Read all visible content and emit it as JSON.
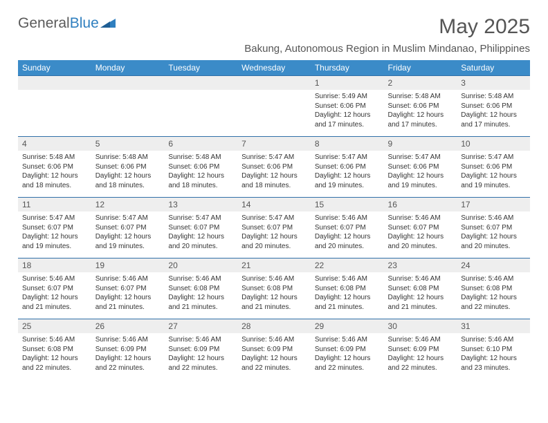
{
  "logo": {
    "text1": "General",
    "text2": "Blue"
  },
  "title": "May 2025",
  "subtitle": "Bakung, Autonomous Region in Muslim Mindanao, Philippines",
  "colors": {
    "header_bg": "#3b8bc8",
    "header_text": "#ffffff",
    "daynum_bg": "#eeeeee",
    "rule": "#2f6fa8",
    "text": "#333333",
    "title_text": "#555555"
  },
  "weekdays": [
    "Sunday",
    "Monday",
    "Tuesday",
    "Wednesday",
    "Thursday",
    "Friday",
    "Saturday"
  ],
  "weeks": [
    [
      {
        "n": "",
        "sr": "",
        "ss": "",
        "dl": ""
      },
      {
        "n": "",
        "sr": "",
        "ss": "",
        "dl": ""
      },
      {
        "n": "",
        "sr": "",
        "ss": "",
        "dl": ""
      },
      {
        "n": "",
        "sr": "",
        "ss": "",
        "dl": ""
      },
      {
        "n": "1",
        "sr": "Sunrise: 5:49 AM",
        "ss": "Sunset: 6:06 PM",
        "dl": "Daylight: 12 hours and 17 minutes."
      },
      {
        "n": "2",
        "sr": "Sunrise: 5:48 AM",
        "ss": "Sunset: 6:06 PM",
        "dl": "Daylight: 12 hours and 17 minutes."
      },
      {
        "n": "3",
        "sr": "Sunrise: 5:48 AM",
        "ss": "Sunset: 6:06 PM",
        "dl": "Daylight: 12 hours and 17 minutes."
      }
    ],
    [
      {
        "n": "4",
        "sr": "Sunrise: 5:48 AM",
        "ss": "Sunset: 6:06 PM",
        "dl": "Daylight: 12 hours and 18 minutes."
      },
      {
        "n": "5",
        "sr": "Sunrise: 5:48 AM",
        "ss": "Sunset: 6:06 PM",
        "dl": "Daylight: 12 hours and 18 minutes."
      },
      {
        "n": "6",
        "sr": "Sunrise: 5:48 AM",
        "ss": "Sunset: 6:06 PM",
        "dl": "Daylight: 12 hours and 18 minutes."
      },
      {
        "n": "7",
        "sr": "Sunrise: 5:47 AM",
        "ss": "Sunset: 6:06 PM",
        "dl": "Daylight: 12 hours and 18 minutes."
      },
      {
        "n": "8",
        "sr": "Sunrise: 5:47 AM",
        "ss": "Sunset: 6:06 PM",
        "dl": "Daylight: 12 hours and 19 minutes."
      },
      {
        "n": "9",
        "sr": "Sunrise: 5:47 AM",
        "ss": "Sunset: 6:06 PM",
        "dl": "Daylight: 12 hours and 19 minutes."
      },
      {
        "n": "10",
        "sr": "Sunrise: 5:47 AM",
        "ss": "Sunset: 6:06 PM",
        "dl": "Daylight: 12 hours and 19 minutes."
      }
    ],
    [
      {
        "n": "11",
        "sr": "Sunrise: 5:47 AM",
        "ss": "Sunset: 6:07 PM",
        "dl": "Daylight: 12 hours and 19 minutes."
      },
      {
        "n": "12",
        "sr": "Sunrise: 5:47 AM",
        "ss": "Sunset: 6:07 PM",
        "dl": "Daylight: 12 hours and 19 minutes."
      },
      {
        "n": "13",
        "sr": "Sunrise: 5:47 AM",
        "ss": "Sunset: 6:07 PM",
        "dl": "Daylight: 12 hours and 20 minutes."
      },
      {
        "n": "14",
        "sr": "Sunrise: 5:47 AM",
        "ss": "Sunset: 6:07 PM",
        "dl": "Daylight: 12 hours and 20 minutes."
      },
      {
        "n": "15",
        "sr": "Sunrise: 5:46 AM",
        "ss": "Sunset: 6:07 PM",
        "dl": "Daylight: 12 hours and 20 minutes."
      },
      {
        "n": "16",
        "sr": "Sunrise: 5:46 AM",
        "ss": "Sunset: 6:07 PM",
        "dl": "Daylight: 12 hours and 20 minutes."
      },
      {
        "n": "17",
        "sr": "Sunrise: 5:46 AM",
        "ss": "Sunset: 6:07 PM",
        "dl": "Daylight: 12 hours and 20 minutes."
      }
    ],
    [
      {
        "n": "18",
        "sr": "Sunrise: 5:46 AM",
        "ss": "Sunset: 6:07 PM",
        "dl": "Daylight: 12 hours and 21 minutes."
      },
      {
        "n": "19",
        "sr": "Sunrise: 5:46 AM",
        "ss": "Sunset: 6:07 PM",
        "dl": "Daylight: 12 hours and 21 minutes."
      },
      {
        "n": "20",
        "sr": "Sunrise: 5:46 AM",
        "ss": "Sunset: 6:08 PM",
        "dl": "Daylight: 12 hours and 21 minutes."
      },
      {
        "n": "21",
        "sr": "Sunrise: 5:46 AM",
        "ss": "Sunset: 6:08 PM",
        "dl": "Daylight: 12 hours and 21 minutes."
      },
      {
        "n": "22",
        "sr": "Sunrise: 5:46 AM",
        "ss": "Sunset: 6:08 PM",
        "dl": "Daylight: 12 hours and 21 minutes."
      },
      {
        "n": "23",
        "sr": "Sunrise: 5:46 AM",
        "ss": "Sunset: 6:08 PM",
        "dl": "Daylight: 12 hours and 21 minutes."
      },
      {
        "n": "24",
        "sr": "Sunrise: 5:46 AM",
        "ss": "Sunset: 6:08 PM",
        "dl": "Daylight: 12 hours and 22 minutes."
      }
    ],
    [
      {
        "n": "25",
        "sr": "Sunrise: 5:46 AM",
        "ss": "Sunset: 6:08 PM",
        "dl": "Daylight: 12 hours and 22 minutes."
      },
      {
        "n": "26",
        "sr": "Sunrise: 5:46 AM",
        "ss": "Sunset: 6:09 PM",
        "dl": "Daylight: 12 hours and 22 minutes."
      },
      {
        "n": "27",
        "sr": "Sunrise: 5:46 AM",
        "ss": "Sunset: 6:09 PM",
        "dl": "Daylight: 12 hours and 22 minutes."
      },
      {
        "n": "28",
        "sr": "Sunrise: 5:46 AM",
        "ss": "Sunset: 6:09 PM",
        "dl": "Daylight: 12 hours and 22 minutes."
      },
      {
        "n": "29",
        "sr": "Sunrise: 5:46 AM",
        "ss": "Sunset: 6:09 PM",
        "dl": "Daylight: 12 hours and 22 minutes."
      },
      {
        "n": "30",
        "sr": "Sunrise: 5:46 AM",
        "ss": "Sunset: 6:09 PM",
        "dl": "Daylight: 12 hours and 22 minutes."
      },
      {
        "n": "31",
        "sr": "Sunrise: 5:46 AM",
        "ss": "Sunset: 6:10 PM",
        "dl": "Daylight: 12 hours and 23 minutes."
      }
    ]
  ]
}
